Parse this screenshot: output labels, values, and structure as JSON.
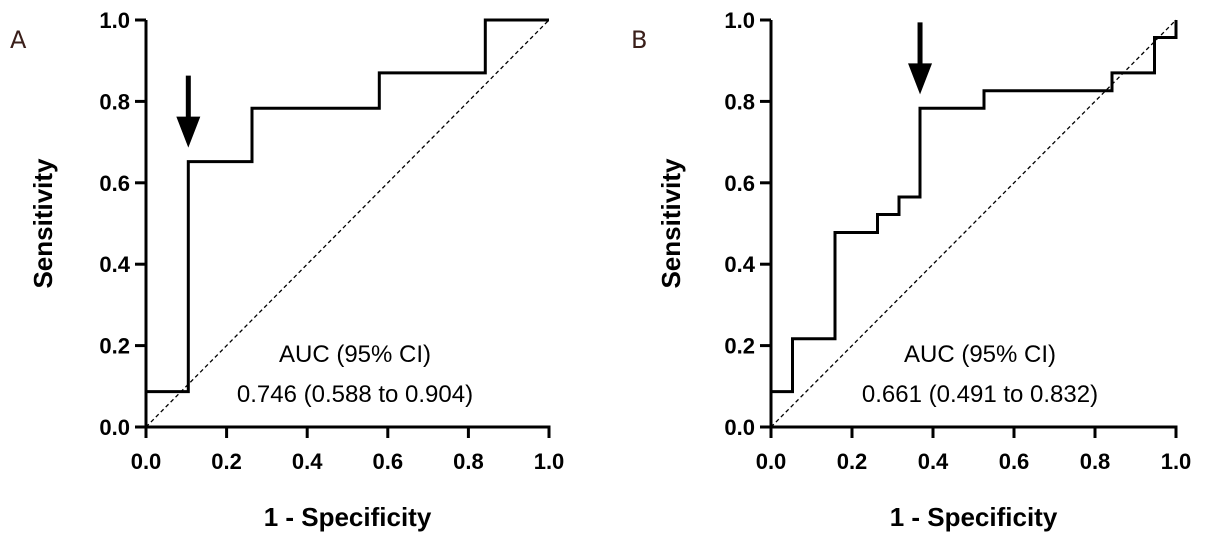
{
  "chart_data": [
    {
      "type": "line",
      "panel_label": "A",
      "xlabel": "1 - Specificity",
      "ylabel": "Sensitivity",
      "xlim": [
        0,
        1
      ],
      "ylim": [
        0,
        1
      ],
      "x_ticks": [
        "0.0",
        "0.2",
        "0.4",
        "0.6",
        "0.8",
        "1.0"
      ],
      "y_ticks": [
        "0.0",
        "0.2",
        "0.4",
        "0.6",
        "0.8",
        "1.0"
      ],
      "grid": false,
      "series": [
        {
          "style": "step",
          "x": [
            0.0,
            0.0,
            0.105,
            0.105,
            0.263,
            0.263,
            0.579,
            0.579,
            0.842,
            0.842,
            1.0
          ],
          "y": [
            0.0,
            0.087,
            0.087,
            0.652,
            0.652,
            0.783,
            0.783,
            0.87,
            0.87,
            1.0,
            1.0
          ]
        },
        {
          "style": "dashed-reference",
          "x": [
            0,
            1
          ],
          "y": [
            0,
            1
          ]
        }
      ],
      "arrow_at": {
        "x": 0.105,
        "y": 0.652
      },
      "annotation": [
        "AUC (95% CI)",
        "0.746 (0.588 to 0.904)"
      ]
    },
    {
      "type": "line",
      "panel_label": "B",
      "xlabel": "1 - Specificity",
      "ylabel": "Sensitivity",
      "xlim": [
        0,
        1
      ],
      "ylim": [
        0,
        1
      ],
      "x_ticks": [
        "0.0",
        "0.2",
        "0.4",
        "0.6",
        "0.8",
        "1.0"
      ],
      "y_ticks": [
        "0.0",
        "0.2",
        "0.4",
        "0.6",
        "0.8",
        "1.0"
      ],
      "grid": false,
      "series": [
        {
          "style": "step",
          "x": [
            0.0,
            0.0,
            0.053,
            0.053,
            0.158,
            0.158,
            0.263,
            0.263,
            0.316,
            0.316,
            0.368,
            0.368,
            0.526,
            0.526,
            0.842,
            0.842,
            0.947,
            0.947,
            1.0,
            1.0
          ],
          "y": [
            0.0,
            0.087,
            0.087,
            0.217,
            0.217,
            0.478,
            0.478,
            0.522,
            0.522,
            0.565,
            0.565,
            0.783,
            0.783,
            0.826,
            0.826,
            0.87,
            0.87,
            0.957,
            0.957,
            1.0
          ]
        },
        {
          "style": "dashed-reference",
          "x": [
            0,
            1
          ],
          "y": [
            0,
            1
          ]
        }
      ],
      "arrow_at": {
        "x": 0.368,
        "y": 0.783
      },
      "annotation": [
        "AUC (95% CI)",
        "0.661 (0.491 to 0.832)"
      ]
    }
  ]
}
